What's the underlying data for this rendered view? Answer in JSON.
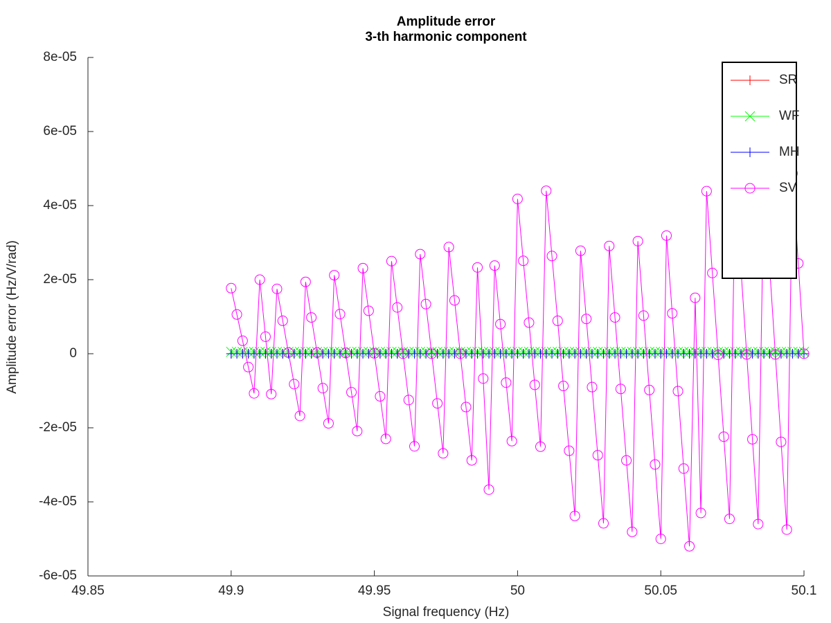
{
  "chart_data": {
    "type": "line",
    "title": "Amplitude error",
    "subtitle": "3-th harmonic component",
    "x_label": "Signal frequency (Hz)",
    "y_label": "Amplitude error (Hz/V/rad)",
    "xlim": [
      49.85,
      50.1
    ],
    "xticks": [
      49.85,
      49.9,
      49.95,
      50,
      50.05,
      50.1
    ],
    "ylim": [
      -6e-05,
      8e-05
    ],
    "yticks": [
      {
        "value": -6e-05,
        "label": "-6e-05"
      },
      {
        "value": -4e-05,
        "label": "-4e-05"
      },
      {
        "value": -2e-05,
        "label": "-2e-05"
      },
      0,
      {
        "value": 2e-05,
        "label": "2e-05"
      },
      {
        "value": 4e-05,
        "label": "4e-05"
      },
      {
        "value": 6e-05,
        "label": "6e-05"
      },
      {
        "value": 8e-05,
        "label": "8e-05"
      }
    ],
    "grid": false,
    "legend": "northeast",
    "x": [
      49.9,
      49.902,
      49.904,
      49.906,
      49.908,
      49.91,
      49.912,
      49.914,
      49.916,
      49.918,
      49.92,
      49.922,
      49.924,
      49.926,
      49.928,
      49.93,
      49.932,
      49.934,
      49.936,
      49.938,
      49.94,
      49.942,
      49.944,
      49.946,
      49.948,
      49.95,
      49.952,
      49.954,
      49.956,
      49.958,
      49.96,
      49.962,
      49.964,
      49.966,
      49.968,
      49.97,
      49.972,
      49.974,
      49.976,
      49.978,
      49.98,
      49.982,
      49.984,
      49.986,
      49.988,
      49.99,
      49.992,
      49.994,
      49.996,
      49.998,
      50,
      50.002,
      50.004,
      50.006,
      50.008,
      50.01,
      50.012,
      50.014,
      50.016,
      50.018,
      50.02,
      50.022,
      50.024,
      50.026,
      50.028,
      50.03,
      50.032,
      50.034,
      50.036,
      50.038,
      50.04,
      50.042,
      50.044,
      50.046,
      50.048,
      50.05,
      50.052,
      50.054,
      50.056,
      50.058,
      50.06,
      50.062,
      50.064,
      50.066,
      50.068,
      50.07,
      50.072,
      50.074,
      50.076,
      50.078,
      50.08,
      50.082,
      50.084,
      50.086,
      50.088,
      50.09,
      50.092,
      50.094,
      50.096,
      50.098,
      50.1
    ],
    "series": [
      {
        "name": "SR",
        "color": "#ff0000",
        "marker": "+",
        "values": [
          0,
          0,
          0,
          0,
          0,
          0,
          0,
          0,
          0,
          0,
          0,
          0,
          0,
          0,
          0,
          0,
          0,
          0,
          0,
          0,
          0,
          0,
          0,
          0,
          0,
          0,
          0,
          0,
          0,
          0,
          0,
          0,
          0,
          0,
          0,
          0,
          0,
          0,
          0,
          0,
          0,
          0,
          0,
          0,
          0,
          0,
          0,
          0,
          0,
          0,
          0,
          0,
          0,
          0,
          0,
          0,
          0,
          0,
          0,
          0,
          0,
          0,
          0,
          0,
          0,
          0,
          0,
          0,
          0,
          0,
          0,
          0,
          0,
          0,
          0,
          0,
          0,
          0,
          0,
          0,
          0,
          0,
          0,
          0,
          0,
          0,
          0,
          0,
          0,
          0,
          0,
          0,
          0,
          0,
          0,
          0,
          0,
          0,
          0,
          0,
          0
        ]
      },
      {
        "name": "WF",
        "color": "#00ff00",
        "marker": "x",
        "values": [
          5e-07,
          5e-07,
          5e-07,
          5e-07,
          5e-07,
          5e-07,
          5e-07,
          5e-07,
          5e-07,
          5e-07,
          5e-07,
          5e-07,
          5e-07,
          5e-07,
          5e-07,
          5e-07,
          5e-07,
          5e-07,
          5e-07,
          5e-07,
          5e-07,
          5e-07,
          5e-07,
          5e-07,
          5e-07,
          5e-07,
          5e-07,
          5e-07,
          5e-07,
          5e-07,
          5e-07,
          5e-07,
          5e-07,
          5e-07,
          5e-07,
          5e-07,
          5e-07,
          5e-07,
          5e-07,
          5e-07,
          5e-07,
          5e-07,
          5e-07,
          5e-07,
          5e-07,
          5e-07,
          5e-07,
          5e-07,
          5e-07,
          5e-07,
          5e-07,
          5e-07,
          5e-07,
          5e-07,
          5e-07,
          5e-07,
          5e-07,
          5e-07,
          5e-07,
          5e-07,
          5e-07,
          5e-07,
          5e-07,
          5e-07,
          5e-07,
          5e-07,
          5e-07,
          5e-07,
          5e-07,
          5e-07,
          5e-07,
          5e-07,
          5e-07,
          5e-07,
          5e-07,
          5e-07,
          5e-07,
          5e-07,
          5e-07,
          5e-07,
          5e-07,
          5e-07,
          5e-07,
          5e-07,
          5e-07,
          5e-07,
          5e-07,
          5e-07,
          5e-07,
          5e-07,
          5e-07,
          5e-07,
          5e-07,
          5e-07,
          5e-07,
          5e-07,
          5e-07,
          5e-07,
          5e-07,
          5e-07,
          5e-07
        ]
      },
      {
        "name": "MH",
        "color": "#0000ff",
        "marker": "+",
        "values": [
          0,
          0,
          0,
          0,
          0,
          0,
          0,
          0,
          0,
          0,
          0,
          0,
          0,
          0,
          0,
          0,
          0,
          0,
          0,
          0,
          0,
          0,
          0,
          0,
          0,
          0,
          0,
          0,
          0,
          0,
          0,
          0,
          0,
          0,
          0,
          0,
          0,
          0,
          0,
          0,
          0,
          0,
          0,
          0,
          0,
          0,
          0,
          0,
          0,
          0,
          0,
          0,
          0,
          0,
          0,
          0,
          0,
          0,
          0,
          0,
          0,
          0,
          0,
          0,
          0,
          0,
          0,
          0,
          0,
          0,
          0,
          0,
          0,
          0,
          0,
          0,
          0,
          0,
          0,
          0,
          0,
          0,
          0,
          0,
          0,
          0,
          0,
          0,
          0,
          0,
          0,
          0,
          0,
          0,
          0,
          0,
          0,
          0,
          0,
          0,
          0
        ]
      },
      {
        "name": "SV",
        "color": "#ff00ff",
        "marker": "o",
        "values": [
          1.77e-05,
          1.06e-05,
          3.5e-06,
          -3.6e-06,
          -1.07e-05,
          2e-05,
          4.6e-06,
          -1.09e-05,
          1.75e-05,
          8.9e-06,
          3e-07,
          -8.2e-06,
          -1.68e-05,
          1.94e-05,
          9.8e-06,
          3e-07,
          -9.3e-06,
          -1.88e-05,
          2.12e-05,
          1.07e-05,
          2e-07,
          -1.04e-05,
          -2.09e-05,
          2.31e-05,
          1.16e-05,
          1e-07,
          -1.15e-05,
          -2.3e-05,
          2.5e-05,
          1.25e-05,
          0.0,
          -1.25e-05,
          -2.5e-05,
          2.69e-05,
          1.34e-05,
          0.0,
          -1.34e-05,
          -2.69e-05,
          2.88e-05,
          1.44e-05,
          0.0,
          -1.44e-05,
          -2.88e-05,
          2.33e-05,
          -6.7e-06,
          -3.67e-05,
          2.38e-05,
          8e-06,
          -7.8e-06,
          -2.36e-05,
          4.18e-05,
          2.51e-05,
          8.4e-06,
          -8.4e-06,
          -2.51e-05,
          4.4e-05,
          2.64e-05,
          8.9e-06,
          -8.7e-06,
          -2.62e-05,
          -4.38e-05,
          2.78e-05,
          9.4e-06,
          -9e-06,
          -2.74e-05,
          -4.58e-05,
          2.91e-05,
          9.8e-06,
          -9.5e-06,
          -2.88e-05,
          -4.81e-05,
          3.04e-05,
          1.03e-05,
          -9.8e-06,
          -2.99e-05,
          -5e-05,
          3.19e-05,
          1.09e-05,
          -1.01e-05,
          -3.1e-05,
          -5.2e-05,
          1.51e-05,
          -4.3e-05,
          4.39e-05,
          2.18e-05,
          -3e-07,
          -2.24e-05,
          -4.46e-05,
          4.56e-05,
          2.27e-05,
          -2e-07,
          -2.31e-05,
          -4.6e-05,
          4.71e-05,
          2.34e-05,
          -2e-07,
          -2.38e-05,
          -4.75e-05,
          4.87e-05,
          2.44e-05,
          0.0
        ]
      }
    ]
  }
}
